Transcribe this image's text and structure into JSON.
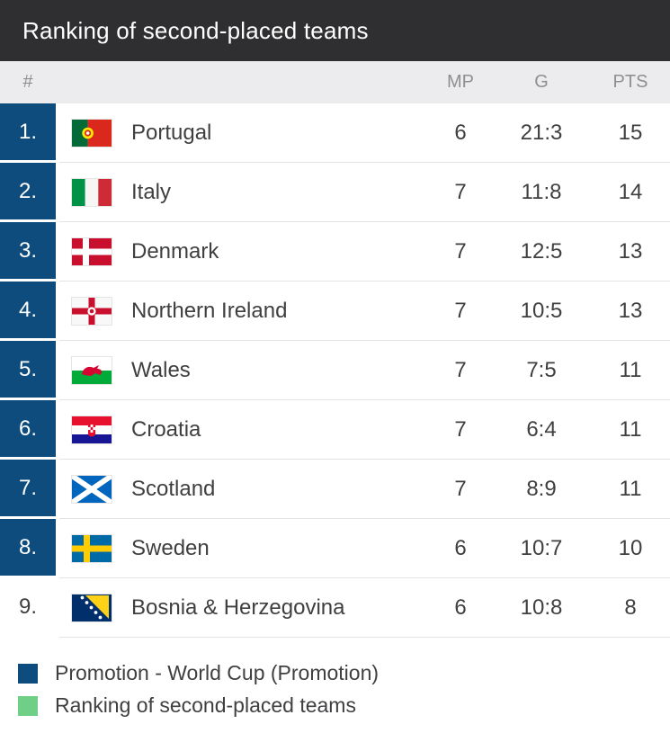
{
  "header": {
    "title": "Ranking of second-placed teams"
  },
  "table": {
    "columns": {
      "rank": "#",
      "mp": "MP",
      "g": "G",
      "pts": "PTS"
    },
    "rows": [
      {
        "rank": "1.",
        "team": "Portugal",
        "flag": "flag-portugal",
        "mp": "6",
        "g": "21:3",
        "pts": "15",
        "promoted": true
      },
      {
        "rank": "2.",
        "team": "Italy",
        "flag": "flag-italy",
        "mp": "7",
        "g": "11:8",
        "pts": "14",
        "promoted": true
      },
      {
        "rank": "3.",
        "team": "Denmark",
        "flag": "flag-denmark",
        "mp": "7",
        "g": "12:5",
        "pts": "13",
        "promoted": true
      },
      {
        "rank": "4.",
        "team": "Northern Ireland",
        "flag": "flag-northern-ireland",
        "mp": "7",
        "g": "10:5",
        "pts": "13",
        "promoted": true
      },
      {
        "rank": "5.",
        "team": "Wales",
        "flag": "flag-wales",
        "mp": "7",
        "g": "7:5",
        "pts": "11",
        "promoted": true
      },
      {
        "rank": "6.",
        "team": "Croatia",
        "flag": "flag-croatia",
        "mp": "7",
        "g": "6:4",
        "pts": "11",
        "promoted": true
      },
      {
        "rank": "7.",
        "team": "Scotland",
        "flag": "flag-scotland",
        "mp": "7",
        "g": "8:9",
        "pts": "11",
        "promoted": true
      },
      {
        "rank": "8.",
        "team": "Sweden",
        "flag": "flag-sweden",
        "mp": "6",
        "g": "10:7",
        "pts": "10",
        "promoted": true
      },
      {
        "rank": "9.",
        "team": "Bosnia & Herzegovina",
        "flag": "flag-bosnia",
        "mp": "6",
        "g": "10:8",
        "pts": "8",
        "promoted": false
      }
    ]
  },
  "legend": {
    "items": [
      {
        "color": "#0e4c7e",
        "label": "Promotion - World Cup (Promotion)"
      },
      {
        "color": "#6fcf87",
        "label": "Ranking of second-placed teams"
      }
    ]
  },
  "colors": {
    "promotion_blue": "#0e4c7e",
    "second_place_green": "#6fcf87",
    "titlebar_dark": "#2f2f31"
  }
}
